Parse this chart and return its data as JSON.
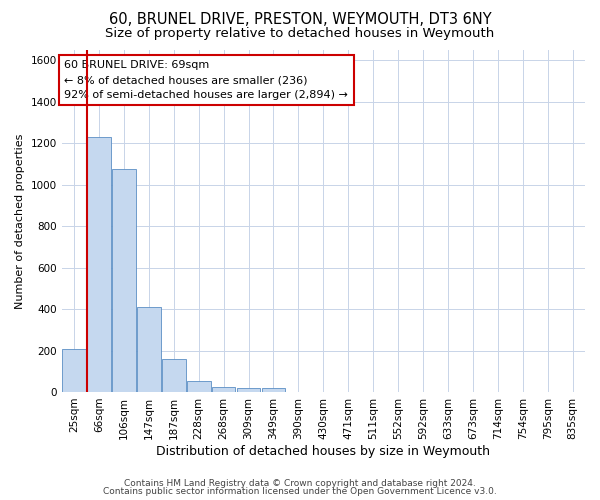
{
  "title1": "60, BRUNEL DRIVE, PRESTON, WEYMOUTH, DT3 6NY",
  "title2": "Size of property relative to detached houses in Weymouth",
  "xlabel": "Distribution of detached houses by size in Weymouth",
  "ylabel": "Number of detached properties",
  "categories": [
    "25sqm",
    "66sqm",
    "106sqm",
    "147sqm",
    "187sqm",
    "228sqm",
    "268sqm",
    "309sqm",
    "349sqm",
    "390sqm",
    "430sqm",
    "471sqm",
    "511sqm",
    "552sqm",
    "592sqm",
    "633sqm",
    "673sqm",
    "714sqm",
    "754sqm",
    "795sqm",
    "835sqm"
  ],
  "values": [
    205,
    1230,
    1075,
    410,
    160,
    55,
    25,
    20,
    20,
    0,
    0,
    0,
    0,
    0,
    0,
    0,
    0,
    0,
    0,
    0,
    0
  ],
  "bar_color": "#c5d8ef",
  "bar_edge_color": "#5b8ec4",
  "highlight_bar_index": 1,
  "highlight_color": "#cc0000",
  "annotation_box_color": "#ffffff",
  "annotation_box_edge": "#cc0000",
  "annotation_text": "60 BRUNEL DRIVE: 69sqm\n← 8% of detached houses are smaller (236)\n92% of semi-detached houses are larger (2,894) →",
  "ylim": [
    0,
    1650
  ],
  "yticks": [
    0,
    200,
    400,
    600,
    800,
    1000,
    1200,
    1400,
    1600
  ],
  "footer1": "Contains HM Land Registry data © Crown copyright and database right 2024.",
  "footer2": "Contains public sector information licensed under the Open Government Licence v3.0.",
  "background_color": "#ffffff",
  "grid_color": "#c8d4e8",
  "title1_fontsize": 10.5,
  "title2_fontsize": 9.5,
  "xlabel_fontsize": 9,
  "ylabel_fontsize": 8,
  "tick_fontsize": 7.5,
  "annotation_fontsize": 8,
  "footer_fontsize": 6.5
}
